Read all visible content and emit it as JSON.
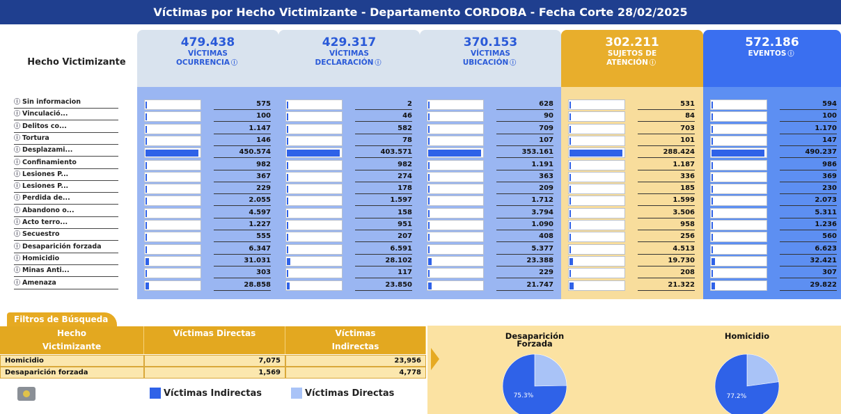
{
  "title": "Víctimas por Hecho Victimizante - Departamento CORDOBA - Fecha Corte 28/02/2025",
  "row_header": "Hecho Victimizante",
  "rows": [
    "Sin informacion",
    "Vinculació...",
    "Delitos co...",
    "Tortura",
    "Desplazami...",
    "Confinamiento",
    "Lesiones P...",
    "Lesiones P...",
    "Perdida de...",
    "Abandono o...",
    "Acto terro...",
    "Secuestro",
    "Desaparición forzada",
    "Homicidio",
    "Minas Anti...",
    "Amenaza"
  ],
  "columns": [
    {
      "total": "479.438",
      "label": [
        "VÍCTIMAS",
        "OCURRENCIA"
      ],
      "values": [
        575,
        100,
        1147,
        146,
        450574,
        982,
        367,
        229,
        2055,
        4597,
        1227,
        555,
        6347,
        31031,
        303,
        28858
      ],
      "value_labels": [
        "575",
        "100",
        "1.147",
        "146",
        "450.574",
        "982",
        "367",
        "229",
        "2.055",
        "4.597",
        "1.227",
        "555",
        "6.347",
        "31.031",
        "303",
        "28.858"
      ]
    },
    {
      "total": "429.317",
      "label": [
        "VÍCTIMAS",
        "DECLARACIÓN"
      ],
      "values": [
        2,
        46,
        582,
        78,
        403571,
        982,
        274,
        178,
        1597,
        158,
        951,
        207,
        6591,
        28102,
        117,
        23850
      ],
      "value_labels": [
        "2",
        "46",
        "582",
        "78",
        "403.571",
        "982",
        "274",
        "178",
        "1.597",
        "158",
        "951",
        "207",
        "6.591",
        "28.102",
        "117",
        "23.850"
      ]
    },
    {
      "total": "370.153",
      "label": [
        "VÍCTIMAS",
        "UBICACIÓN"
      ],
      "values": [
        628,
        90,
        709,
        107,
        353161,
        1191,
        363,
        209,
        1712,
        3794,
        1090,
        408,
        5377,
        23388,
        229,
        21747
      ],
      "value_labels": [
        "628",
        "90",
        "709",
        "107",
        "353.161",
        "1.191",
        "363",
        "209",
        "1.712",
        "3.794",
        "1.090",
        "408",
        "5.377",
        "23.388",
        "229",
        "21.747"
      ]
    },
    {
      "total": "302.211",
      "label": [
        "SUJETOS DE",
        "ATENCIÓN"
      ],
      "values": [
        531,
        84,
        703,
        101,
        288424,
        1187,
        336,
        185,
        1599,
        3506,
        958,
        256,
        4513,
        19730,
        208,
        21322
      ],
      "value_labels": [
        "531",
        "84",
        "703",
        "101",
        "288.424",
        "1.187",
        "336",
        "185",
        "1.599",
        "3.506",
        "958",
        "256",
        "4.513",
        "19.730",
        "208",
        "21.322"
      ]
    },
    {
      "total": "572.186",
      "label": [
        "EVENTOS"
      ],
      "values": [
        594,
        100,
        1170,
        147,
        490237,
        986,
        369,
        230,
        2073,
        5311,
        1236,
        560,
        6623,
        32421,
        307,
        29822
      ],
      "value_labels": [
        "594",
        "100",
        "1.170",
        "147",
        "490.237",
        "986",
        "369",
        "230",
        "2.073",
        "5.311",
        "1.236",
        "560",
        "6.623",
        "32.421",
        "307",
        "29.822"
      ]
    }
  ],
  "filters": {
    "tab": "Filtros de Búsqueda",
    "headers": [
      "Hecho Victimizante",
      "Víctimas Directas",
      "Víctimas Indirectas"
    ],
    "rows": [
      [
        "Homicidio",
        "7,075",
        "23,956"
      ],
      [
        "Desaparición forzada",
        "1,569",
        "4,778"
      ]
    ]
  },
  "legend": [
    {
      "name": "Víctimas Indirectas",
      "color": "#2f62e8"
    },
    {
      "name": "Víctimas Directas",
      "color": "#a9c3f7"
    }
  ],
  "pies": [
    {
      "title": "Desaparición Forzada",
      "values": [
        75.3,
        24.7
      ],
      "value_labels": [
        "75.3%",
        null
      ]
    },
    {
      "title": "Homicidio",
      "values": [
        77.2,
        22.8
      ],
      "value_labels": [
        "77.2%",
        null
      ]
    }
  ]
}
